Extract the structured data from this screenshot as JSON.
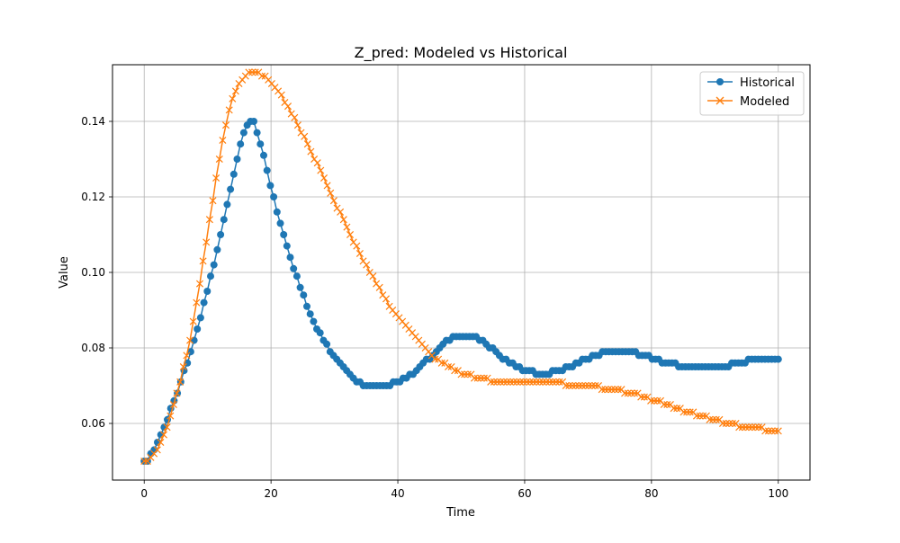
{
  "chart_data": {
    "type": "line",
    "title": "Z_pred: Modeled vs Historical",
    "xlabel": "Time",
    "ylabel": "Value",
    "xlim": [
      -5,
      105
    ],
    "ylim": [
      0.045,
      0.155
    ],
    "xticks": [
      0,
      20,
      40,
      60,
      80,
      100
    ],
    "xtick_labels": [
      "0",
      "20",
      "40",
      "60",
      "80",
      "100"
    ],
    "yticks": [
      0.06,
      0.08,
      0.1,
      0.12,
      0.14
    ],
    "ytick_labels": [
      "0.06",
      "0.08",
      "0.10",
      "0.12",
      "0.14"
    ],
    "grid": true,
    "legend_position": "top-right",
    "series": [
      {
        "name": "Historical",
        "color": "#1f77b4",
        "marker": "circle",
        "x_start": 0,
        "x_end": 100,
        "values": [
          0.05,
          0.05,
          0.052,
          0.053,
          0.055,
          0.057,
          0.059,
          0.061,
          0.064,
          0.066,
          0.068,
          0.071,
          0.074,
          0.076,
          0.079,
          0.082,
          0.085,
          0.088,
          0.092,
          0.095,
          0.099,
          0.102,
          0.106,
          0.11,
          0.114,
          0.118,
          0.122,
          0.126,
          0.13,
          0.134,
          0.137,
          0.139,
          0.14,
          0.14,
          0.137,
          0.134,
          0.131,
          0.127,
          0.123,
          0.12,
          0.116,
          0.113,
          0.11,
          0.107,
          0.104,
          0.101,
          0.099,
          0.096,
          0.094,
          0.091,
          0.089,
          0.087,
          0.085,
          0.084,
          0.082,
          0.081,
          0.079,
          0.078,
          0.077,
          0.076,
          0.075,
          0.074,
          0.073,
          0.072,
          0.071,
          0.071,
          0.07,
          0.07,
          0.07,
          0.07,
          0.07,
          0.07,
          0.07,
          0.07,
          0.07,
          0.071,
          0.071,
          0.071,
          0.072,
          0.072,
          0.073,
          0.073,
          0.074,
          0.075,
          0.076,
          0.077,
          0.077,
          0.078,
          0.079,
          0.08,
          0.081,
          0.082,
          0.082,
          0.083,
          0.083,
          0.083,
          0.083,
          0.083,
          0.083,
          0.083,
          0.083,
          0.082,
          0.082,
          0.081,
          0.08,
          0.08,
          0.079,
          0.078,
          0.077,
          0.077,
          0.076,
          0.076,
          0.075,
          0.075,
          0.074,
          0.074,
          0.074,
          0.074,
          0.073,
          0.073,
          0.073,
          0.073,
          0.073,
          0.074,
          0.074,
          0.074,
          0.074,
          0.075,
          0.075,
          0.075,
          0.076,
          0.076,
          0.077,
          0.077,
          0.077,
          0.078,
          0.078,
          0.078,
          0.079,
          0.079,
          0.079,
          0.079,
          0.079,
          0.079,
          0.079,
          0.079,
          0.079,
          0.079,
          0.079,
          0.078,
          0.078,
          0.078,
          0.078,
          0.077,
          0.077,
          0.077,
          0.076,
          0.076,
          0.076,
          0.076,
          0.076,
          0.075,
          0.075,
          0.075,
          0.075,
          0.075,
          0.075,
          0.075,
          0.075,
          0.075,
          0.075,
          0.075,
          0.075,
          0.075,
          0.075,
          0.075,
          0.075,
          0.076,
          0.076,
          0.076,
          0.076,
          0.076,
          0.077,
          0.077,
          0.077,
          0.077,
          0.077,
          0.077,
          0.077,
          0.077,
          0.077,
          0.077
        ]
      },
      {
        "name": "Modeled",
        "color": "#ff7f0e",
        "marker": "x",
        "x_start": 0,
        "x_end": 100,
        "values": [
          0.05,
          0.05,
          0.051,
          0.052,
          0.053,
          0.055,
          0.057,
          0.059,
          0.062,
          0.065,
          0.068,
          0.071,
          0.075,
          0.078,
          0.082,
          0.087,
          0.092,
          0.097,
          0.103,
          0.108,
          0.114,
          0.119,
          0.125,
          0.13,
          0.135,
          0.139,
          0.143,
          0.146,
          0.148,
          0.15,
          0.151,
          0.152,
          0.153,
          0.153,
          0.153,
          0.153,
          0.152,
          0.152,
          0.151,
          0.15,
          0.149,
          0.148,
          0.147,
          0.145,
          0.144,
          0.142,
          0.141,
          0.139,
          0.137,
          0.136,
          0.134,
          0.132,
          0.13,
          0.129,
          0.127,
          0.125,
          0.123,
          0.121,
          0.119,
          0.117,
          0.116,
          0.114,
          0.112,
          0.11,
          0.108,
          0.107,
          0.105,
          0.103,
          0.102,
          0.1,
          0.099,
          0.097,
          0.096,
          0.094,
          0.093,
          0.091,
          0.09,
          0.089,
          0.088,
          0.087,
          0.086,
          0.085,
          0.084,
          0.083,
          0.082,
          0.081,
          0.08,
          0.079,
          0.078,
          0.077,
          0.077,
          0.076,
          0.076,
          0.075,
          0.075,
          0.074,
          0.074,
          0.073,
          0.073,
          0.073,
          0.073,
          0.072,
          0.072,
          0.072,
          0.072,
          0.072,
          0.071,
          0.071,
          0.071,
          0.071,
          0.071,
          0.071,
          0.071,
          0.071,
          0.071,
          0.071,
          0.071,
          0.071,
          0.071,
          0.071,
          0.071,
          0.071,
          0.071,
          0.071,
          0.071,
          0.071,
          0.071,
          0.071,
          0.071,
          0.07,
          0.07,
          0.07,
          0.07,
          0.07,
          0.07,
          0.07,
          0.07,
          0.07,
          0.07,
          0.07,
          0.069,
          0.069,
          0.069,
          0.069,
          0.069,
          0.069,
          0.069,
          0.068,
          0.068,
          0.068,
          0.068,
          0.068,
          0.067,
          0.067,
          0.067,
          0.066,
          0.066,
          0.066,
          0.066,
          0.065,
          0.065,
          0.065,
          0.064,
          0.064,
          0.064,
          0.063,
          0.063,
          0.063,
          0.063,
          0.062,
          0.062,
          0.062,
          0.062,
          0.061,
          0.061,
          0.061,
          0.061,
          0.06,
          0.06,
          0.06,
          0.06,
          0.06,
          0.059,
          0.059,
          0.059,
          0.059,
          0.059,
          0.059,
          0.059,
          0.059,
          0.058,
          0.058,
          0.058,
          0.058,
          0.058
        ]
      }
    ]
  }
}
